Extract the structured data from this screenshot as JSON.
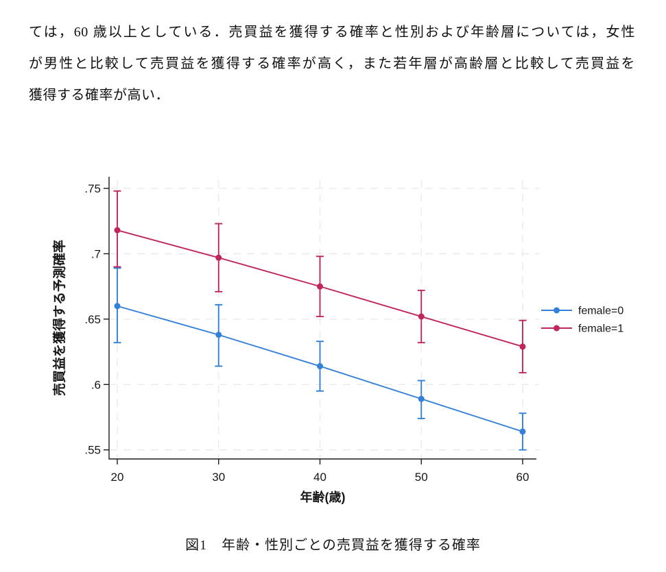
{
  "document": {
    "paragraph_lines": [
      "ては，60 歳以上としている．売買益を獲得する確率と性別および年齢層については，女性",
      "が男性と比較して売買益を獲得する確率が高く，また若年層が高齢層と比較して売買益を",
      "獲得する確率が高い．"
    ],
    "figure_caption": "図1　年齢・性別ごとの売買益を獲得する確率"
  },
  "chart_data": {
    "type": "line",
    "title": "",
    "xlabel": "年齢(歳)",
    "ylabel": "売買益を獲得する予測確率",
    "x": [
      20,
      30,
      40,
      50,
      60
    ],
    "xticks": [
      20,
      30,
      40,
      50,
      60
    ],
    "yticks": [
      0.55,
      0.6,
      0.65,
      0.7,
      0.75
    ],
    "ytick_labels": [
      ".55",
      ".6",
      ".65",
      ".7",
      ".75"
    ],
    "ylim": [
      0.55,
      0.75
    ],
    "grid": true,
    "legend_position": "right-outside",
    "grid_color": "#e8e8e8",
    "axis_color": "#1a1a1a",
    "text_color": "#161616",
    "series": [
      {
        "name": "female=0",
        "color": "#3480d8",
        "values": [
          0.66,
          0.638,
          0.614,
          0.589,
          0.564
        ],
        "ci_high": [
          0.689,
          0.661,
          0.633,
          0.603,
          0.578
        ],
        "ci_low": [
          0.632,
          0.614,
          0.595,
          0.574,
          0.55
        ]
      },
      {
        "name": "female=1",
        "color": "#c0265e",
        "values": [
          0.718,
          0.697,
          0.675,
          0.652,
          0.629
        ],
        "ci_high": [
          0.748,
          0.723,
          0.698,
          0.672,
          0.649
        ],
        "ci_low": [
          0.69,
          0.671,
          0.652,
          0.632,
          0.609
        ]
      }
    ]
  }
}
